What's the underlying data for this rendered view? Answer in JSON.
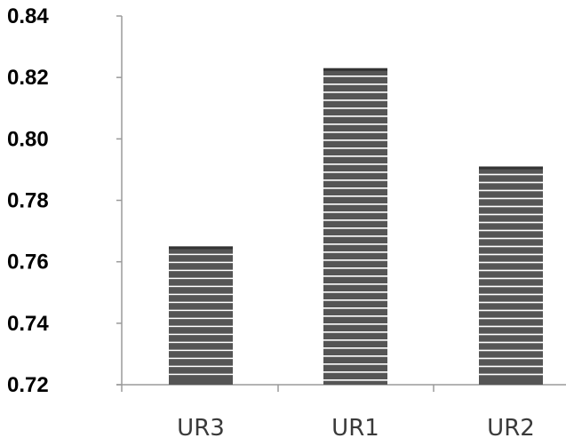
{
  "chart_data": {
    "type": "bar",
    "categories": [
      "UR3",
      "UR1",
      "UR2"
    ],
    "values": [
      0.765,
      0.823,
      0.791
    ],
    "title": "",
    "xlabel": "",
    "ylabel": "",
    "ylim": [
      0.72,
      0.84
    ],
    "yticks": [
      "0.84",
      "0.82",
      "0.80",
      "0.78",
      "0.76",
      "0.74",
      "0.72"
    ],
    "grid": false,
    "legend": "none",
    "bar_color": "#555555",
    "stripe_color": "#ffffff",
    "axis_color": "#9a9a9a"
  }
}
